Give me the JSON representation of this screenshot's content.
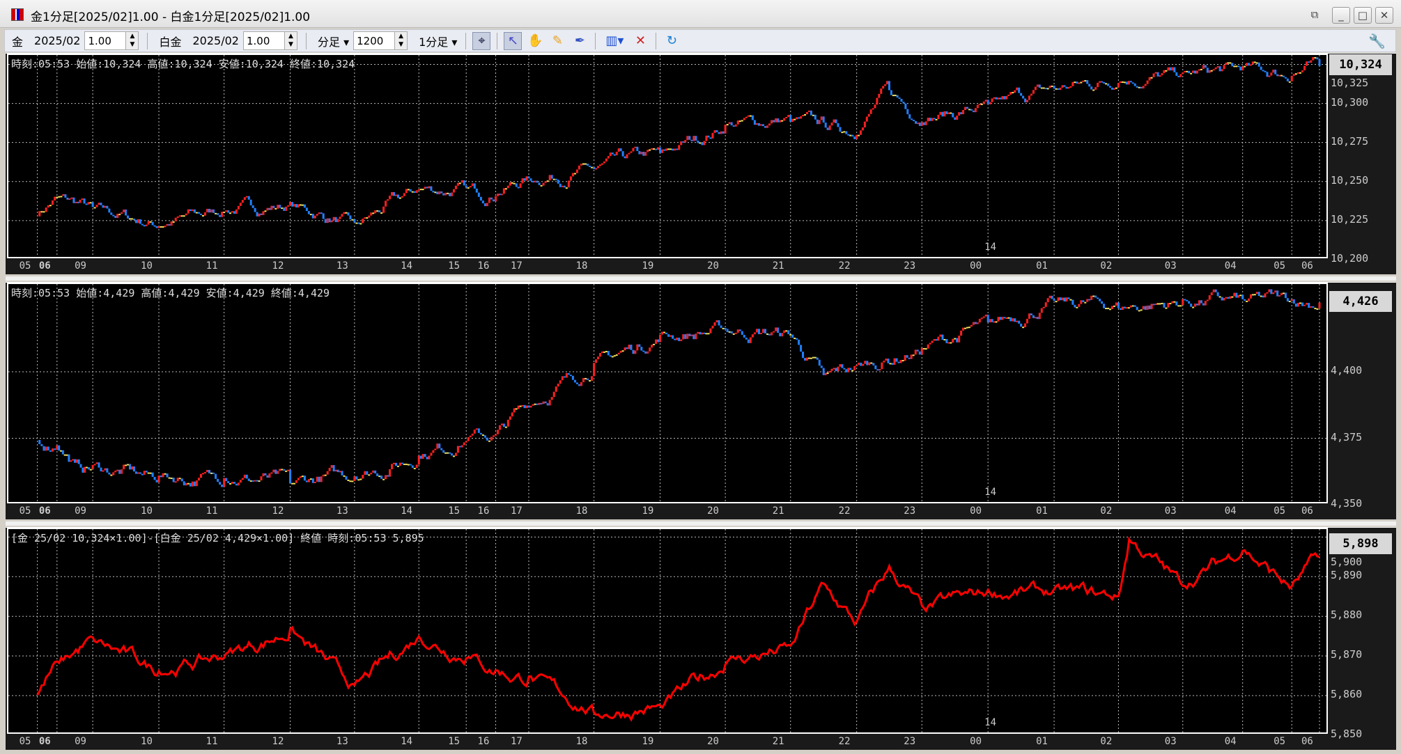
{
  "window": {
    "title": "金1分足[2025/02]1.00 - 白金1分足[2025/02]1.00"
  },
  "toolbar": {
    "sym1": "金",
    "month1": "2025/02",
    "mult1": "1.00",
    "sym2": "白金",
    "month2": "2025/02",
    "mult2": "1.00",
    "period_unit": "分足",
    "bar_count": "1200",
    "timeframe": "1分足",
    "icons": [
      "crosshair-toggle-icon",
      "pointer-icon",
      "hand-pan-icon",
      "pencil-icon",
      "trendline-tool-icon",
      "chart-type-icon",
      "delete-drawing-icon",
      "refresh-icon",
      "settings-wrench-icon"
    ]
  },
  "x_labels": [
    "05",
    "06",
    "09",
    "10",
    "11",
    "12",
    "13",
    "14",
    "15",
    "16",
    "17",
    "18",
    "19",
    "20",
    "21",
    "22",
    "23",
    "00",
    "01",
    "02",
    "03",
    "04",
    "05",
    "06"
  ],
  "date_marker": "14",
  "colors": {
    "up": "#ff2020",
    "down": "#2080ff",
    "flat": "#f0e060",
    "spread": "#ff0000",
    "grid": "#bbbbbb"
  },
  "panels": [
    {
      "header": "時刻:05:53 始値:10,324 高値:10,324 安値:10,324 終値:10,324",
      "last": "10,324",
      "yticks": [
        "10,325",
        "10,300",
        "10,275",
        "10,250",
        "10,225",
        "10,200"
      ]
    },
    {
      "header": "時刻:05:53 始値:4,429 高値:4,429 安値:4,429 終値:4,429",
      "last": "4,426",
      "yticks": [
        "4,400",
        "4,375",
        "4,350"
      ]
    },
    {
      "header": "[金 25/02 10,324×1.00]-[白金 25/02 4,429×1.00] 終値 時刻:05:53 5,895",
      "last": "5,898",
      "yticks": [
        "5,900",
        "5,890",
        "5,880",
        "5,870",
        "5,860",
        "5,850"
      ]
    }
  ],
  "chart_data": [
    {
      "type": "candlestick",
      "ylim": [
        10200,
        10331
      ],
      "x": [
        "05",
        "06",
        "09",
        "10",
        "11",
        "12",
        "13",
        "14",
        "15",
        "16",
        "17",
        "18",
        "19",
        "20",
        "21",
        "22",
        "22:30",
        "23",
        "00",
        "01",
        "02",
        "03",
        "04",
        "05",
        "06"
      ],
      "values": [
        10230,
        10240,
        10233,
        10222,
        10232,
        10235,
        10222,
        10245,
        10245,
        10242,
        10252,
        10258,
        10268,
        10285,
        10290,
        10282,
        10310,
        10290,
        10298,
        10310,
        10315,
        10318,
        10322,
        10318,
        10324
      ]
    },
    {
      "type": "candlestick",
      "ylim": [
        4350,
        4433
      ],
      "x": [
        "05",
        "06",
        "06:30",
        "09",
        "10",
        "11",
        "12",
        "13",
        "14",
        "15",
        "16",
        "17",
        "18",
        "19",
        "20",
        "21",
        "21:30",
        "22",
        "23",
        "00",
        "01",
        "02",
        "03",
        "04",
        "05",
        "06"
      ],
      "values": [
        4374,
        4373,
        4365,
        4364,
        4360,
        4360,
        4359,
        4361,
        4368,
        4375,
        4376,
        4388,
        4402,
        4413,
        4416,
        4414,
        4398,
        4402,
        4408,
        4418,
        4426,
        4425,
        4426,
        4427,
        4427,
        4426
      ]
    },
    {
      "type": "line",
      "ylim": [
        5850,
        5902
      ],
      "x": [
        "05",
        "06",
        "09",
        "10",
        "11",
        "12",
        "13",
        "14",
        "15",
        "16",
        "17",
        "18",
        "19",
        "20",
        "21",
        "21:30",
        "22",
        "22:30",
        "23",
        "00",
        "01",
        "02",
        "02:10",
        "03",
        "04",
        "05",
        "06"
      ],
      "values": [
        5860,
        5868,
        5874,
        5866,
        5870,
        5876,
        5862,
        5875,
        5870,
        5866,
        5864,
        5856,
        5857,
        5868,
        5872,
        5888,
        5878,
        5892,
        5882,
        5886,
        5886,
        5885,
        5899,
        5888,
        5897,
        5887,
        5895
      ]
    }
  ]
}
